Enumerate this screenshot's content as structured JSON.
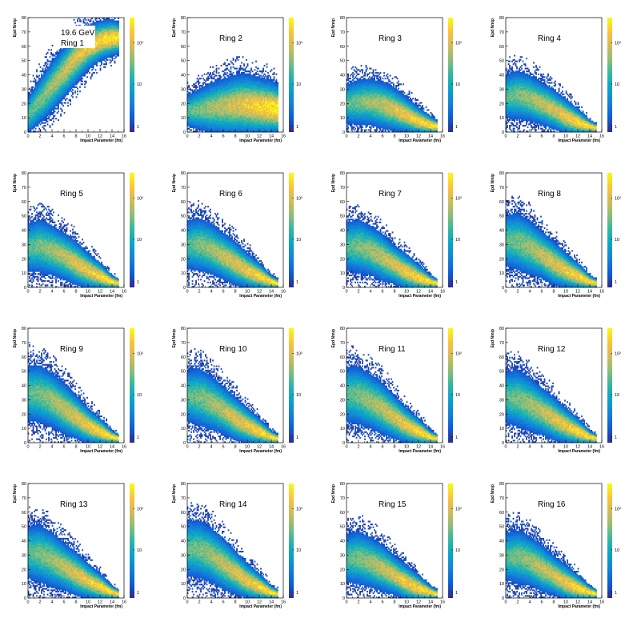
{
  "energy_label": "19.6 GeV",
  "colors": {
    "palette": [
      "#352a87",
      "#0b5dd9",
      "#1581d6",
      "#06a4ca",
      "#2eb7a4",
      "#87bf77",
      "#d1bb59",
      "#fcc339",
      "#f9fb0e"
    ],
    "frame": "#000000",
    "background": "#ffffff"
  },
  "chart_data": [
    {
      "type": "heatmap",
      "title": "Ring 1",
      "xlabel": "Impact Parameter (fm)",
      "ylabel": "Epd Nmip",
      "xlim": [
        0,
        16
      ],
      "ylim": [
        0,
        80
      ],
      "xticks": [
        "0",
        "2",
        "4",
        "6",
        "8",
        "10",
        "12",
        "14",
        "16"
      ],
      "yticks": [
        "0",
        "10",
        "20",
        "30",
        "40",
        "50",
        "60",
        "70",
        "80"
      ],
      "zscale": "log",
      "zticks": [
        "1",
        "10",
        "10²"
      ],
      "band": {
        "x": [
          0,
          2,
          4,
          6,
          8,
          10,
          12,
          14,
          15
        ],
        "y_center": [
          12,
          22,
          32,
          42,
          52,
          59,
          64,
          66,
          66
        ],
        "y_halfwidth": [
          9,
          11,
          12,
          12,
          12,
          10,
          9,
          8,
          7
        ]
      },
      "peak_region": "x 6-15 fm, y 45-70"
    },
    {
      "type": "heatmap",
      "title": "Ring 2",
      "xlabel": "Impact Parameter (fm)",
      "ylabel": "Epd Nmip",
      "xlim": [
        0,
        16
      ],
      "ylim": [
        0,
        80
      ],
      "xticks": [
        "0",
        "2",
        "4",
        "6",
        "8",
        "10",
        "12",
        "14",
        "16"
      ],
      "yticks": [
        "0",
        "10",
        "20",
        "30",
        "40",
        "50",
        "60",
        "70",
        "80"
      ],
      "zscale": "log",
      "zticks": [
        "1",
        "10",
        "10²"
      ],
      "band": {
        "x": [
          0,
          2,
          4,
          6,
          8,
          10,
          12,
          14,
          15
        ],
        "y_center": [
          15,
          16,
          17,
          18,
          19,
          19,
          18,
          17,
          16
        ],
        "y_halfwidth": [
          8,
          10,
          12,
          13,
          14,
          14,
          13,
          12,
          11
        ]
      }
    },
    {
      "type": "heatmap",
      "title": "Ring 3",
      "xlabel": "Impact Parameter (fm)",
      "ylabel": "Epd Nmip",
      "xlim": [
        0,
        16
      ],
      "ylim": [
        0,
        80
      ],
      "xticks": [
        "0",
        "2",
        "4",
        "6",
        "8",
        "10",
        "12",
        "14",
        "16"
      ],
      "yticks": [
        "0",
        "10",
        "20",
        "30",
        "40",
        "50",
        "60",
        "70",
        "80"
      ],
      "zscale": "log",
      "zticks": [
        "1",
        "10",
        "10²"
      ],
      "band": {
        "x": [
          0,
          2,
          4,
          6,
          8,
          10,
          12,
          14,
          15
        ],
        "y_center": [
          20,
          21,
          21,
          19,
          16,
          12,
          8,
          5,
          4
        ],
        "y_halfwidth": [
          10,
          11,
          11,
          11,
          10,
          8,
          6,
          4,
          3
        ]
      }
    },
    {
      "type": "heatmap",
      "title": "Ring 4",
      "xlabel": "Impact Parameter (fm)",
      "ylabel": "Epd Nmip",
      "xlim": [
        0,
        16
      ],
      "ylim": [
        0,
        80
      ],
      "xticks": [
        "0",
        "2",
        "4",
        "6",
        "8",
        "10",
        "12",
        "14",
        "16"
      ],
      "yticks": [
        "0",
        "10",
        "20",
        "30",
        "40",
        "50",
        "60",
        "70",
        "80"
      ],
      "zscale": "log",
      "zticks": [
        "1",
        "10",
        "10²"
      ],
      "band": {
        "x": [
          0,
          2,
          4,
          6,
          8,
          10,
          12,
          14,
          15
        ],
        "y_center": [
          25,
          26,
          24,
          20,
          16,
          11,
          7,
          4,
          3
        ],
        "y_halfwidth": [
          11,
          12,
          11,
          10,
          9,
          8,
          6,
          3,
          2
        ]
      }
    },
    {
      "type": "heatmap",
      "title": "Ring 5",
      "xlabel": "Impact Parameter (fm)",
      "ylabel": "Epd Nmip",
      "xlim": [
        0,
        16
      ],
      "ylim": [
        0,
        80
      ],
      "xticks": [
        "0",
        "2",
        "4",
        "6",
        "8",
        "10",
        "12",
        "14",
        "16"
      ],
      "yticks": [
        "0",
        "10",
        "20",
        "30",
        "40",
        "50",
        "60",
        "70",
        "80"
      ],
      "zscale": "log",
      "zticks": [
        "1",
        "10",
        "10²"
      ],
      "band": {
        "x": [
          0,
          2,
          4,
          6,
          8,
          10,
          12,
          14,
          15
        ],
        "y_center": [
          28,
          29,
          26,
          22,
          17,
          12,
          8,
          4,
          3
        ],
        "y_halfwidth": [
          12,
          13,
          12,
          11,
          10,
          8,
          6,
          3,
          2
        ]
      }
    },
    {
      "type": "heatmap",
      "title": "Ring 6",
      "xlabel": "Impact Parameter (fm)",
      "ylabel": "Epd Nmip",
      "xlim": [
        0,
        16
      ],
      "ylim": [
        0,
        80
      ],
      "xticks": [
        "0",
        "2",
        "4",
        "6",
        "8",
        "10",
        "12",
        "14",
        "16"
      ],
      "yticks": [
        "0",
        "10",
        "20",
        "30",
        "40",
        "50",
        "60",
        "70",
        "80"
      ],
      "zscale": "log",
      "zticks": [
        "1",
        "10",
        "10²"
      ],
      "band": {
        "x": [
          0,
          2,
          4,
          6,
          8,
          10,
          12,
          14,
          15
        ],
        "y_center": [
          30,
          30,
          27,
          22,
          17,
          12,
          8,
          4,
          3
        ],
        "y_halfwidth": [
          12,
          13,
          12,
          11,
          10,
          8,
          6,
          3,
          2
        ]
      }
    },
    {
      "type": "heatmap",
      "title": "Ring 7",
      "xlabel": "Impact Parameter (fm)",
      "ylabel": "Epd Nmip",
      "xlim": [
        0,
        16
      ],
      "ylim": [
        0,
        80
      ],
      "xticks": [
        "0",
        "2",
        "4",
        "6",
        "8",
        "10",
        "12",
        "14",
        "16"
      ],
      "yticks": [
        "0",
        "10",
        "20",
        "30",
        "40",
        "50",
        "60",
        "70",
        "80"
      ],
      "zscale": "log",
      "zticks": [
        "1",
        "10",
        "10²"
      ],
      "band": {
        "x": [
          0,
          2,
          4,
          6,
          8,
          10,
          12,
          14,
          15
        ],
        "y_center": [
          29,
          29,
          26,
          21,
          16,
          11,
          7,
          4,
          3
        ],
        "y_halfwidth": [
          12,
          13,
          12,
          11,
          9,
          8,
          6,
          3,
          2
        ]
      }
    },
    {
      "type": "heatmap",
      "title": "Ring 8",
      "xlabel": "Impact Parameter (fm)",
      "ylabel": "Epd Nmip",
      "xlim": [
        0,
        16
      ],
      "ylim": [
        0,
        80
      ],
      "xticks": [
        "0",
        "2",
        "4",
        "6",
        "8",
        "10",
        "12",
        "14",
        "16"
      ],
      "yticks": [
        "0",
        "10",
        "20",
        "30",
        "40",
        "50",
        "60",
        "70",
        "80"
      ],
      "zscale": "log",
      "zticks": [
        "1",
        "10",
        "10²"
      ],
      "band": {
        "x": [
          0,
          2,
          4,
          6,
          8,
          10,
          12,
          14,
          15
        ],
        "y_center": [
          33,
          32,
          28,
          23,
          17,
          12,
          8,
          4,
          3
        ],
        "y_halfwidth": [
          13,
          14,
          13,
          11,
          10,
          8,
          6,
          3,
          2
        ]
      }
    },
    {
      "type": "heatmap",
      "title": "Ring 9",
      "xlabel": "Impact Parameter (fm)",
      "ylabel": "Epd Nmip",
      "xlim": [
        0,
        16
      ],
      "ylim": [
        0,
        80
      ],
      "xticks": [
        "0",
        "2",
        "4",
        "6",
        "8",
        "10",
        "12",
        "14",
        "16"
      ],
      "yticks": [
        "0",
        "10",
        "20",
        "30",
        "40",
        "50",
        "60",
        "70",
        "80"
      ],
      "zscale": "log",
      "zticks": [
        "1",
        "10",
        "10²"
      ],
      "band": {
        "x": [
          0,
          2,
          4,
          6,
          8,
          10,
          12,
          14,
          15
        ],
        "y_center": [
          35,
          34,
          30,
          24,
          18,
          12,
          8,
          4,
          3
        ],
        "y_halfwidth": [
          14,
          14,
          13,
          12,
          10,
          8,
          6,
          3,
          2
        ]
      }
    },
    {
      "type": "heatmap",
      "title": "Ring 10",
      "xlabel": "Impact Parameter (fm)",
      "ylabel": "Epd Nmip",
      "xlim": [
        0,
        16
      ],
      "ylim": [
        0,
        80
      ],
      "xticks": [
        "0",
        "2",
        "4",
        "6",
        "8",
        "10",
        "12",
        "14",
        "16"
      ],
      "yticks": [
        "0",
        "10",
        "20",
        "30",
        "40",
        "50",
        "60",
        "70",
        "80"
      ],
      "zscale": "log",
      "zticks": [
        "1",
        "10",
        "10²"
      ],
      "band": {
        "x": [
          0,
          2,
          4,
          6,
          8,
          10,
          12,
          14,
          15
        ],
        "y_center": [
          33,
          32,
          28,
          23,
          17,
          12,
          8,
          4,
          3
        ],
        "y_halfwidth": [
          13,
          14,
          13,
          11,
          10,
          8,
          6,
          3,
          2
        ]
      }
    },
    {
      "type": "heatmap",
      "title": "Ring 11",
      "xlabel": "Impact Parameter (fm)",
      "ylabel": "Epd Nmip",
      "xlim": [
        0,
        16
      ],
      "ylim": [
        0,
        80
      ],
      "xticks": [
        "0",
        "2",
        "4",
        "6",
        "8",
        "10",
        "12",
        "14",
        "16"
      ],
      "yticks": [
        "0",
        "10",
        "20",
        "30",
        "40",
        "50",
        "60",
        "70",
        "80"
      ],
      "zscale": "log",
      "zticks": [
        "1",
        "10",
        "10²"
      ],
      "band": {
        "x": [
          0,
          2,
          4,
          6,
          8,
          10,
          12,
          14,
          15
        ],
        "y_center": [
          34,
          33,
          29,
          24,
          18,
          12,
          8,
          4,
          3
        ],
        "y_halfwidth": [
          14,
          14,
          13,
          12,
          10,
          8,
          6,
          3,
          2
        ]
      }
    },
    {
      "type": "heatmap",
      "title": "Ring 12",
      "xlabel": "Impact Parameter (fm)",
      "ylabel": "Epd Nmip",
      "xlim": [
        0,
        16
      ],
      "ylim": [
        0,
        80
      ],
      "xticks": [
        "0",
        "2",
        "4",
        "6",
        "8",
        "10",
        "12",
        "14",
        "16"
      ],
      "yticks": [
        "0",
        "10",
        "20",
        "30",
        "40",
        "50",
        "60",
        "70",
        "80"
      ],
      "zscale": "log",
      "zticks": [
        "1",
        "10",
        "10²"
      ],
      "band": {
        "x": [
          0,
          2,
          4,
          6,
          8,
          10,
          12,
          14,
          15
        ],
        "y_center": [
          32,
          31,
          27,
          22,
          17,
          12,
          8,
          4,
          3
        ],
        "y_halfwidth": [
          13,
          14,
          13,
          11,
          10,
          8,
          6,
          3,
          2
        ]
      }
    },
    {
      "type": "heatmap",
      "title": "Ring 13",
      "xlabel": "Impact Parameter (fm)",
      "ylabel": "Epd Nmip",
      "xlim": [
        0,
        16
      ],
      "ylim": [
        0,
        80
      ],
      "xticks": [
        "0",
        "2",
        "4",
        "6",
        "8",
        "10",
        "12",
        "14",
        "16"
      ],
      "yticks": [
        "0",
        "10",
        "20",
        "30",
        "40",
        "50",
        "60",
        "70",
        "80"
      ],
      "zscale": "log",
      "zticks": [
        "1",
        "10",
        "10²"
      ],
      "band": {
        "x": [
          0,
          2,
          4,
          6,
          8,
          10,
          12,
          14,
          15
        ],
        "y_center": [
          32,
          31,
          27,
          22,
          17,
          12,
          8,
          4,
          3
        ],
        "y_halfwidth": [
          13,
          14,
          13,
          11,
          10,
          8,
          6,
          3,
          2
        ]
      }
    },
    {
      "type": "heatmap",
      "title": "Ring 14",
      "xlabel": "Impact Parameter (fm)",
      "ylabel": "Epd Nmip",
      "xlim": [
        0,
        16
      ],
      "ylim": [
        0,
        80
      ],
      "xticks": [
        "0",
        "2",
        "4",
        "6",
        "8",
        "10",
        "12",
        "14",
        "16"
      ],
      "yticks": [
        "0",
        "10",
        "20",
        "30",
        "40",
        "50",
        "60",
        "70",
        "80"
      ],
      "zscale": "log",
      "zticks": [
        "1",
        "10",
        "10²"
      ],
      "band": {
        "x": [
          0,
          2,
          4,
          6,
          8,
          10,
          12,
          14,
          15
        ],
        "y_center": [
          35,
          34,
          30,
          24,
          18,
          12,
          8,
          4,
          3
        ],
        "y_halfwidth": [
          14,
          14,
          13,
          12,
          10,
          8,
          6,
          3,
          2
        ]
      }
    },
    {
      "type": "heatmap",
      "title": "Ring 15",
      "xlabel": "Impact Parameter (fm)",
      "ylabel": "Epd Nmip",
      "xlim": [
        0,
        16
      ],
      "ylim": [
        0,
        80
      ],
      "xticks": [
        "0",
        "2",
        "4",
        "6",
        "8",
        "10",
        "12",
        "14",
        "16"
      ],
      "yticks": [
        "0",
        "10",
        "20",
        "30",
        "40",
        "50",
        "60",
        "70",
        "80"
      ],
      "zscale": "log",
      "zticks": [
        "1",
        "10",
        "10²"
      ],
      "band": {
        "x": [
          0,
          2,
          4,
          6,
          8,
          10,
          12,
          14,
          15
        ],
        "y_center": [
          28,
          28,
          25,
          21,
          16,
          11,
          7,
          4,
          3
        ],
        "y_halfwidth": [
          12,
          13,
          12,
          11,
          9,
          8,
          6,
          3,
          2
        ]
      }
    },
    {
      "type": "heatmap",
      "title": "Ring 16",
      "xlabel": "Impact Parameter (fm)",
      "ylabel": "Epd Nmip",
      "xlim": [
        0,
        16
      ],
      "ylim": [
        0,
        80
      ],
      "xticks": [
        "0",
        "2",
        "4",
        "6",
        "8",
        "10",
        "12",
        "14",
        "16"
      ],
      "yticks": [
        "0",
        "10",
        "20",
        "30",
        "40",
        "50",
        "60",
        "70",
        "80"
      ],
      "zscale": "log",
      "zticks": [
        "1",
        "10",
        "10²"
      ],
      "band": {
        "x": [
          0,
          2,
          4,
          6,
          8,
          10,
          12,
          14,
          15
        ],
        "y_center": [
          29,
          29,
          26,
          21,
          16,
          11,
          7,
          4,
          3
        ],
        "y_halfwidth": [
          12,
          13,
          12,
          11,
          9,
          8,
          6,
          3,
          2
        ]
      }
    }
  ]
}
